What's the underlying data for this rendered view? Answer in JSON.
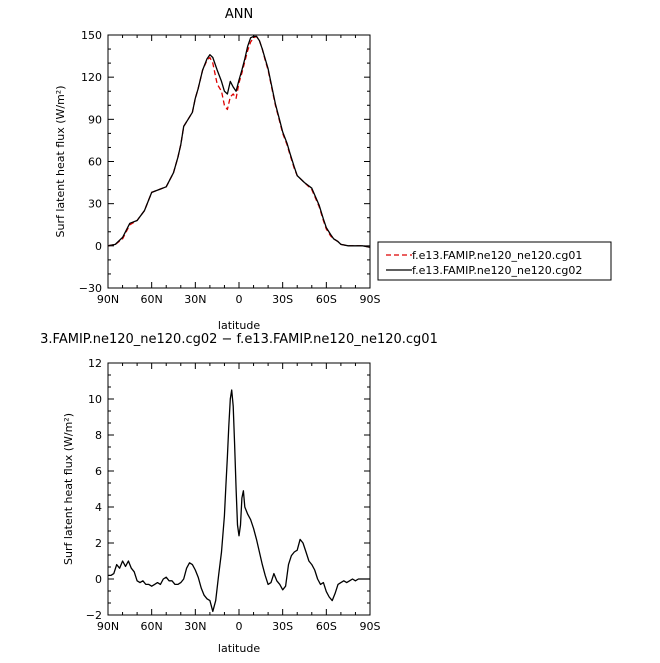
{
  "chart_data": [
    {
      "type": "line",
      "title": "ANN",
      "xlabel": "latitude",
      "ylabel": "Surf latent heat flux (W/m²)",
      "xlim": [
        90,
        -90
      ],
      "ylim": [
        -30,
        150
      ],
      "x_ticks": [
        90,
        60,
        30,
        0,
        -30,
        -60,
        -90
      ],
      "x_tick_labels": [
        "90N",
        "60N",
        "30N",
        "0",
        "30S",
        "60S",
        "90S"
      ],
      "y_ticks": [
        -30,
        0,
        30,
        60,
        90,
        120,
        150
      ],
      "y_tick_labels": [
        "−30",
        "0",
        "30",
        "60",
        "90",
        "120",
        "150"
      ],
      "legend_position": "lower-right-outside",
      "x": [
        90,
        85,
        80,
        75,
        70,
        65,
        60,
        55,
        50,
        45,
        42,
        40,
        38,
        35,
        32,
        30,
        28,
        25,
        22,
        20,
        18,
        15,
        12,
        10,
        8,
        6,
        4,
        2,
        0,
        -2,
        -4,
        -6,
        -8,
        -10,
        -12,
        -14,
        -16,
        -18,
        -20,
        -22,
        -25,
        -28,
        -30,
        -33,
        -35,
        -38,
        -40,
        -45,
        -50,
        -55,
        -58,
        -60,
        -63,
        -65,
        -68,
        -70,
        -75,
        -80,
        -85,
        -90
      ],
      "series": [
        {
          "name": "f.e13.FAMIP.ne120_ne120.cg01",
          "color": "#dd0000",
          "dash": "dashed",
          "values": [
            0,
            1,
            5,
            15,
            18,
            25,
            38,
            40,
            42,
            52,
            63,
            72,
            85,
            90,
            95,
            105,
            112,
            125,
            132,
            134,
            130,
            115,
            110,
            100,
            97,
            106,
            108,
            105,
            116,
            123,
            131,
            139,
            145,
            148,
            149,
            146,
            140,
            132,
            125,
            115,
            100,
            88,
            80,
            72,
            65,
            55,
            50,
            45,
            40,
            28,
            18,
            12,
            7,
            5,
            3,
            1,
            0,
            0,
            0,
            -1
          ]
        },
        {
          "name": "f.e13.FAMIP.ne120_ne120.cg02",
          "color": "#000000",
          "dash": "solid",
          "values": [
            0,
            1,
            6,
            16,
            18,
            25,
            38,
            40,
            42,
            52,
            63,
            72,
            85,
            90,
            95,
            105,
            112,
            125,
            133,
            136,
            134,
            125,
            117,
            110,
            108,
            117,
            113,
            110,
            118,
            125,
            133,
            142,
            148,
            149,
            149,
            146,
            140,
            133,
            126,
            116,
            101,
            89,
            81,
            73,
            66,
            56,
            50,
            45,
            41,
            29,
            19,
            13,
            8,
            5,
            3,
            1,
            0,
            0,
            0,
            -1
          ]
        }
      ]
    },
    {
      "type": "line",
      "title": "3.FAMIP.ne120_ne120.cg02 − f.e13.FAMIP.ne120_ne120.cg01",
      "xlabel": "latitude",
      "ylabel": "Surf latent heat flux (W/m²)",
      "xlim": [
        90,
        -90
      ],
      "ylim": [
        -2,
        12
      ],
      "x_ticks": [
        90,
        60,
        30,
        0,
        -30,
        -60,
        -90
      ],
      "x_tick_labels": [
        "90N",
        "60N",
        "30N",
        "0",
        "30S",
        "60S",
        "90S"
      ],
      "y_ticks": [
        -2,
        0,
        2,
        4,
        6,
        8,
        10,
        12
      ],
      "y_tick_labels": [
        "−2",
        "0",
        "2",
        "4",
        "6",
        "8",
        "10",
        "12"
      ],
      "x": [
        90,
        88,
        86,
        84,
        82,
        80,
        78,
        76,
        74,
        72,
        70,
        68,
        66,
        64,
        62,
        60,
        58,
        56,
        54,
        52,
        50,
        48,
        46,
        44,
        42,
        40,
        38,
        36,
        34,
        32,
        30,
        28,
        26,
        24,
        22,
        20,
        18,
        16,
        14,
        12,
        10,
        9,
        8,
        7,
        6,
        5,
        4,
        3,
        2,
        1,
        0,
        -1,
        -2,
        -3,
        -4,
        -6,
        -8,
        -10,
        -12,
        -14,
        -16,
        -18,
        -20,
        -22,
        -24,
        -26,
        -28,
        -30,
        -32,
        -34,
        -36,
        -38,
        -40,
        -42,
        -44,
        -46,
        -48,
        -50,
        -52,
        -54,
        -56,
        -58,
        -60,
        -62,
        -64,
        -66,
        -68,
        -70,
        -72,
        -74,
        -76,
        -78,
        -80,
        -82,
        -84,
        -86,
        -88,
        -90
      ],
      "series": [
        {
          "name": "",
          "color": "#000000",
          "dash": "solid",
          "values": [
            0.2,
            0.2,
            0.3,
            0.8,
            0.6,
            1.0,
            0.7,
            1.0,
            0.6,
            0.4,
            -0.1,
            -0.2,
            -0.1,
            -0.3,
            -0.3,
            -0.4,
            -0.3,
            -0.2,
            -0.3,
            0.0,
            0.1,
            -0.1,
            -0.1,
            -0.3,
            -0.3,
            -0.2,
            0.0,
            0.6,
            0.9,
            0.8,
            0.5,
            0.1,
            -0.5,
            -0.9,
            -1.1,
            -1.2,
            -1.8,
            -1.2,
            0.2,
            1.5,
            3.5,
            5.2,
            6.8,
            8.5,
            10.0,
            10.5,
            9.6,
            7.5,
            5.0,
            3.0,
            2.4,
            3.0,
            4.5,
            4.9,
            4.0,
            3.6,
            3.3,
            2.8,
            2.2,
            1.5,
            0.8,
            0.2,
            -0.3,
            -0.2,
            0.3,
            -0.1,
            -0.3,
            -0.6,
            -0.4,
            0.8,
            1.3,
            1.5,
            1.6,
            2.2,
            2.0,
            1.5,
            1.0,
            0.8,
            0.5,
            0.0,
            -0.3,
            -0.2,
            -0.7,
            -1.0,
            -1.2,
            -0.8,
            -0.3,
            -0.2,
            -0.1,
            -0.2,
            -0.1,
            0.0,
            -0.1,
            0.0,
            0.0,
            0.0,
            0.0,
            0.0
          ]
        }
      ]
    }
  ]
}
